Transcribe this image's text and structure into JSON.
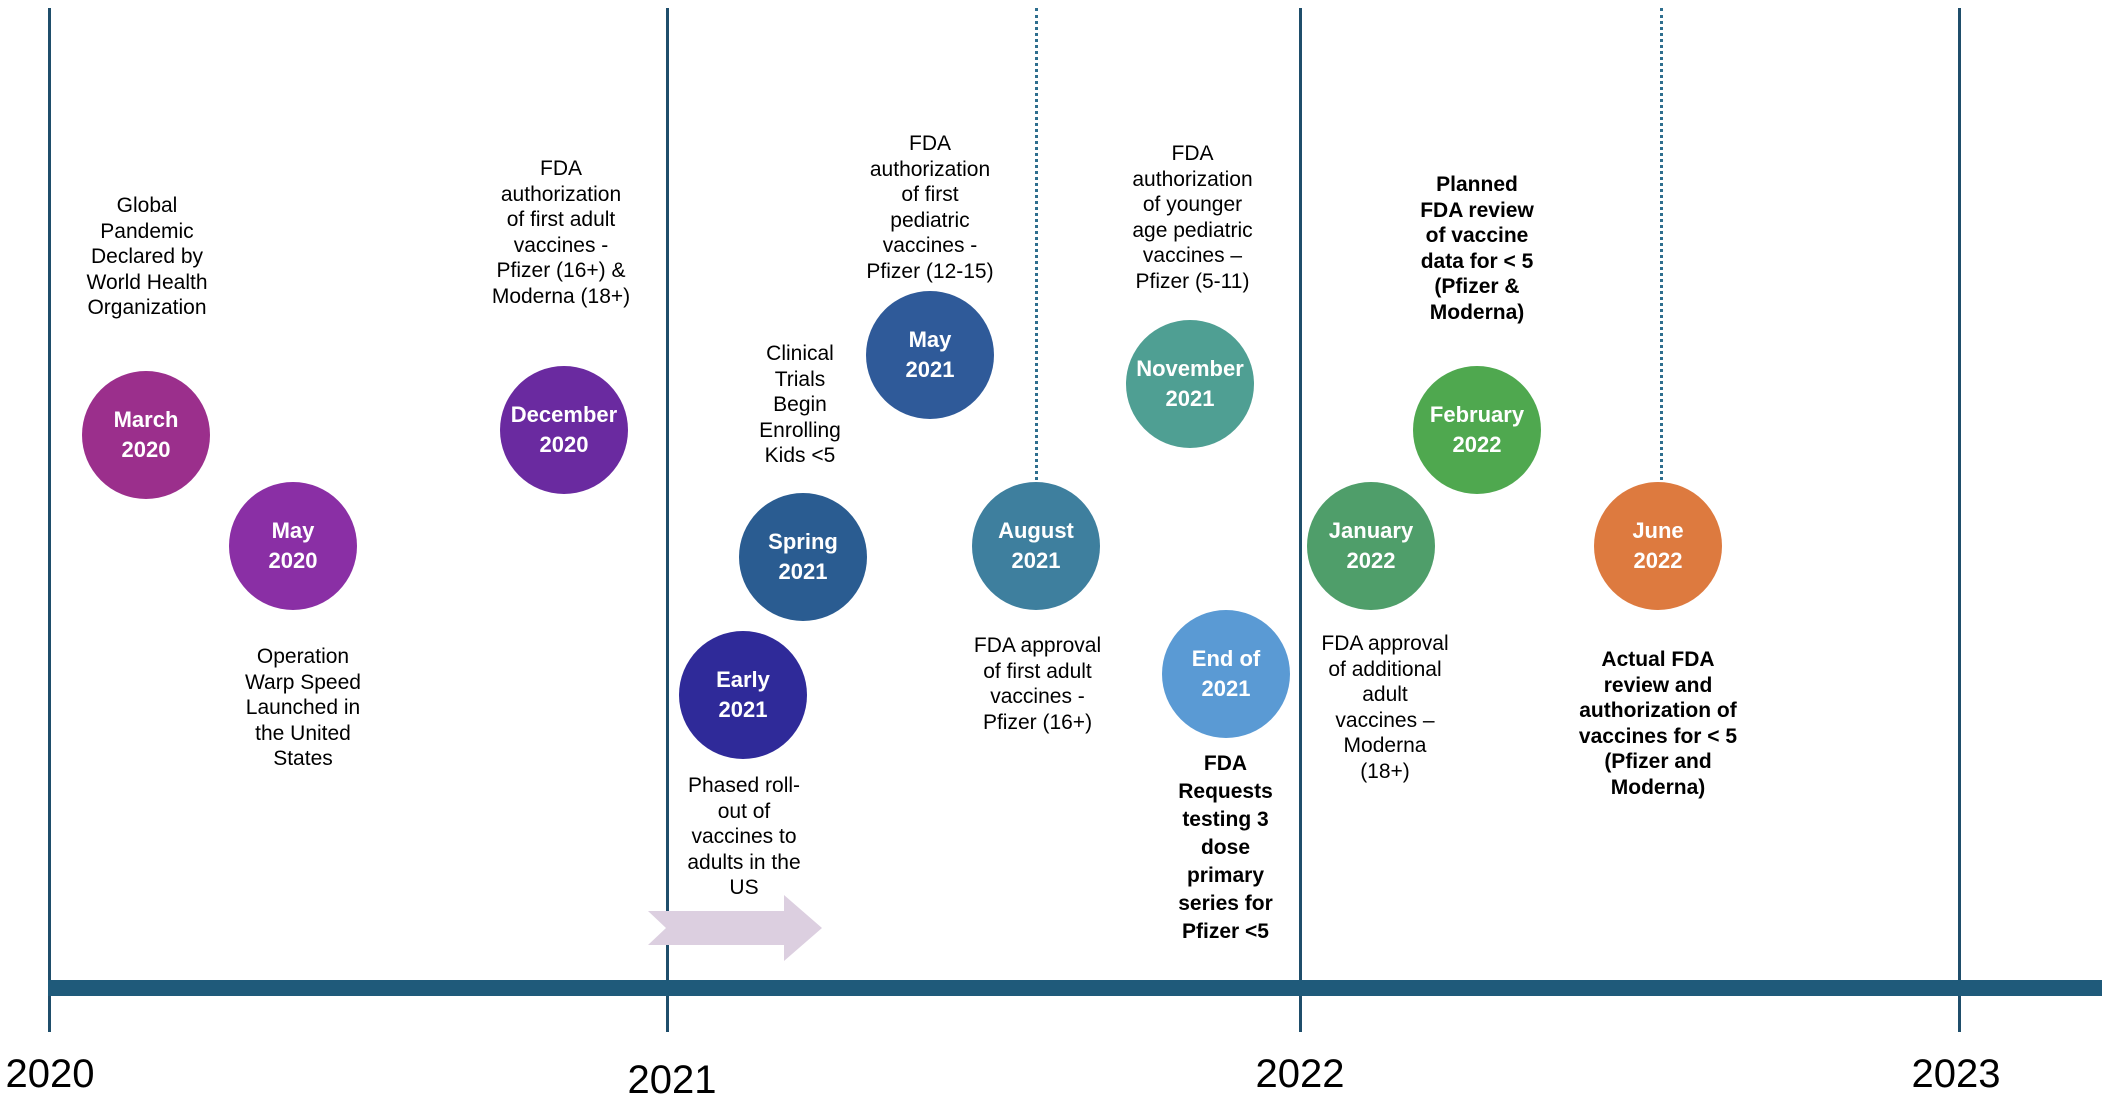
{
  "years": [
    "2020",
    "2021",
    "2022",
    "2023"
  ],
  "events": [
    {
      "id": "march-2020",
      "line1": "March",
      "line2": "2020",
      "color": "#9b2f8c",
      "note": "Global\nPandemic\nDeclared by\nWorld Health\nOrganization",
      "note_bold": false
    },
    {
      "id": "may-2020",
      "line1": "May",
      "line2": "2020",
      "color": "#8a2fa5",
      "note": "Operation\nWarp Speed\nLaunched in\nthe United\nStates",
      "note_bold": false
    },
    {
      "id": "december-2020",
      "line1": "December",
      "line2": "2020",
      "color": "#6a2aa0",
      "note": "FDA\nauthorization\nof first adult\nvaccines -\nPfizer (16+) &\nModerna (18+)",
      "note_bold": false
    },
    {
      "id": "early-2021",
      "line1": "Early",
      "line2": "2021",
      "color": "#2f2a99",
      "note": "Phased roll-\nout of\nvaccines to\nadults in the\nUS",
      "note_bold": false
    },
    {
      "id": "spring-2021",
      "line1": "Spring",
      "line2": "2021",
      "color": "#2a5c91",
      "note": "Clinical\nTrials\nBegin\nEnrolling\nKids <5",
      "note_bold": false
    },
    {
      "id": "may-2021",
      "line1": "May",
      "line2": "2021",
      "color": "#2f5a99",
      "note": "FDA\nauthorization\nof first\npediatric\nvaccines -\nPfizer (12-15)",
      "note_bold": false
    },
    {
      "id": "august-2021",
      "line1": "August",
      "line2": "2021",
      "color": "#3e7f9e",
      "note": "FDA approval\nof first adult\nvaccines -\nPfizer (16+)",
      "note_bold": false
    },
    {
      "id": "november-2021",
      "line1": "November",
      "line2": "2021",
      "color": "#4f9f93",
      "note": "FDA\nauthorization\nof younger\nage pediatric\nvaccines –\nPfizer (5-11)",
      "note_bold": false
    },
    {
      "id": "end-of-2021",
      "line1": "End of",
      "line2": "2021",
      "color": "#5a9ad4",
      "note": "FDA\nRequests\ntesting 3\ndose\nprimary\nseries for\nPfizer <5",
      "note_bold": true
    },
    {
      "id": "january-2022",
      "line1": "January",
      "line2": "2022",
      "color": "#4f9e6a",
      "note": "FDA approval\nof additional\nadult\nvaccines –\nModerna\n(18+)",
      "note_bold": false
    },
    {
      "id": "february-2022",
      "line1": "February",
      "line2": "2022",
      "color": "#4fa84f",
      "note": "Planned\nFDA review\nof vaccine\ndata for < 5\n(Pfizer &\nModerna)",
      "note_bold": true
    },
    {
      "id": "june-2022",
      "line1": "June",
      "line2": "2022",
      "color": "#dd7a3f",
      "note": "Actual FDA\nreview and\nauthorization of\nvaccines for < 5\n(Pfizer and\nModerna)",
      "note_bold": true
    }
  ]
}
